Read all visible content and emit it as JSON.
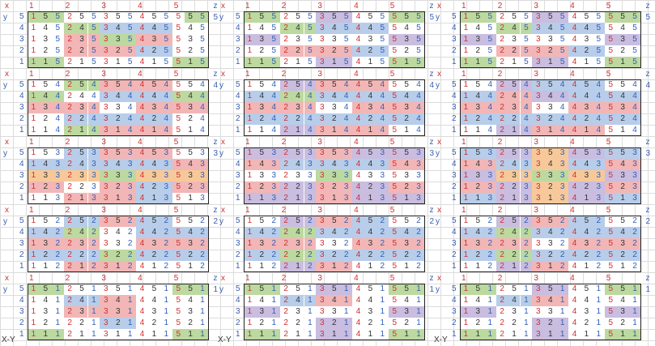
{
  "footer_label": "X-Y",
  "axis_labels": {
    "x": "x",
    "y": "y",
    "z": "z"
  },
  "x_ticks": [
    "1",
    "2",
    "3",
    "4",
    "5"
  ],
  "layers": [
    "5",
    "4",
    "3",
    "2",
    "1"
  ],
  "colors": {
    "G": "#bcd9a0",
    "B": "#b7cdea",
    "R": "#f2b6b6",
    "P": "#c9bde0",
    "O": "#f7c99a",
    "W": "#ffffff"
  },
  "boards": [
    [
      [
        "GGGWWWWWWWWWWGG",
        "WWWGGGBBBBBBWWW",
        "WWWRRRGGGRRRWWW",
        "WWWRRRRRRBBBWWW",
        "GGGWWWWWWWWWGGG"
      ],
      [
        "WWWGGGRRRRRRWWW",
        "GGGWWWBBBBBBGGG",
        "RRRRRRWWWRRRRRR",
        "WWWBBBBBBBBBWWW",
        "WWWGGGRRRRRRWWW"
      ],
      [
        "WWWBBBRRRRRRWWW",
        "BBBBBBBBBBBBRRR",
        "OOOOOOGGGOOOOOO",
        "RRRWWWRRRBBBRRR",
        "WWWRRRRRRBBBWWW"
      ],
      [
        "WWWBBBRRRBBBWWW",
        "BBBGGGWWWBBBBBB",
        "RRRRRRWWWRRRRRR",
        "BBBBBBGGGBBBBBB",
        "WWWRRRRRRWWWWWW"
      ],
      [
        "GGGWWWWWWWWWGGG",
        "WWWBBBRRRWWWWWW",
        "WWWRRRRRRWWWWWW",
        "WWWWWWBBBWWWWWW",
        "GGGWWWWWWWWWGGG"
      ]
    ],
    [
      [
        "GGGWWWPPPWWWGGG",
        "WWWGGGBBBBBBWWW",
        "PPPWWWWWWWWWPPP",
        "WWWRRRRRRBBBWWW",
        "GGGWWWPPPWWWGGG"
      ],
      [
        "WWWPPPRRRRRRWWW",
        "BBBGGGBBBBBBBBB",
        "RRRRRRWWWRRRRRR",
        "BBBBBBBBBBBBBBB",
        "WWWPPPRRRRRRWWW"
      ],
      [
        "PPPPPPRRRPPPPPP",
        "RRRBBBBBBBBBRRR",
        "WWWWWWGGGWWWWWW",
        "RRRPPPRRRPPPRRR",
        "PPPPPPRRRPPPPPP"
      ],
      [
        "WWWPPPRRRBBBWWW",
        "BBBGGGBBBBBBBBB",
        "RRRRRRWWWRRRRRR",
        "BBBGGGBBBBBBBBB",
        "WWWPPPRRRWWWWWW"
      ],
      [
        "GGGWWWPPPWWWGGG",
        "WWWBBBRRRWWWWWW",
        "PPPWWWWWWWWWPPP",
        "WWWWWWPPPWWWWWW",
        "GGGWWWPPPWWWGGG"
      ]
    ],
    [
      [
        "GGGWWWPPPWWWGGG",
        "WWWGGGBBBBBBWWW",
        "PPPWWWWWWWWWPPP",
        "WWWRRRRRRBBBWWW",
        "GGGWWWPPPWWWGGG"
      ],
      [
        "WWWPPPBBBBBBWWW",
        "BBBRRRPPPBBBBBB",
        "RRRRRRWWWRRRRRR",
        "BBBBBBBBBBBBBBB",
        "WWWPPPRRRRRRWWW"
      ],
      [
        "BBBPPPOOOPPPBBB",
        "RRRBBBOOOBBBRRR",
        "PPPOOOGGGOOOPPP",
        "RRRPPPOOOPPPRRR",
        "BBBPPPOOOPPPBBB"
      ],
      [
        "WWWPPPRRRBBBWWW",
        "BBBGGGBBBBBBBBB",
        "RRRRRRWWWRRRRRR",
        "BBBGGGBBBBBBBBB",
        "WWWPPPRRRWWWWWW"
      ],
      [
        "GGGWWWPPPWWWGGG",
        "WWWBBBRRRWWWWWW",
        "PPPWWWWWWWWWPPP",
        "WWWWWWPPPWWWWWW",
        "GGGWWWPPPWWWGGG"
      ]
    ]
  ]
}
